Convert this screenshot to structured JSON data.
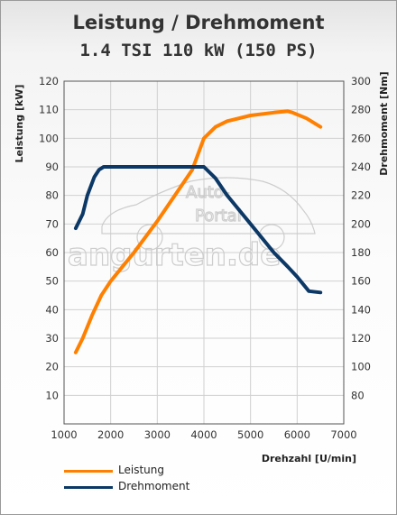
{
  "chart_data": {
    "type": "line",
    "title": "Leistung / Drehmoment",
    "subtitle": "1.4 TSI 110 kW (150 PS)",
    "xlabel": "Drehzahl [U/min]",
    "ylabel_left": "Leistung [kW]",
    "ylabel_right": "Drehmoment [Nm]",
    "xlim": [
      1000,
      7000
    ],
    "ylim_left": [
      0,
      120
    ],
    "ylim_right": [
      60,
      300
    ],
    "x_ticks": [
      "1000",
      "2000",
      "3000",
      "4000",
      "5000",
      "6000",
      "7000"
    ],
    "y_ticks_left": [
      "10",
      "20",
      "30",
      "40",
      "50",
      "60",
      "70",
      "80",
      "90",
      "100",
      "110",
      "120"
    ],
    "y_ticks_right": [
      "80",
      "100",
      "120",
      "140",
      "160",
      "180",
      "200",
      "220",
      "240",
      "260",
      "280",
      "300"
    ],
    "grid": true,
    "legend_position": "bottom-left",
    "watermark": "Auto-Portal angurten.de",
    "series": [
      {
        "name": "Leistung",
        "axis": "left",
        "color": "#ff8000",
        "x": [
          1250,
          1400,
          1600,
          1800,
          2000,
          2500,
          3000,
          3500,
          3750,
          4000,
          4250,
          4500,
          5000,
          5500,
          5800,
          5900,
          6200,
          6500
        ],
        "y": [
          25,
          30,
          38,
          45,
          50,
          60,
          71,
          83,
          89,
          100,
          104,
          106,
          108,
          109,
          109.5,
          109,
          107,
          104
        ]
      },
      {
        "name": "Drehmoment",
        "axis": "right",
        "color": "#0b3866",
        "x": [
          1250,
          1400,
          1500,
          1650,
          1750,
          1850,
          2000,
          2500,
          3000,
          3500,
          4000,
          4250,
          4500,
          5000,
          5500,
          5800,
          6000,
          6250,
          6500
        ],
        "y": [
          197,
          207,
          220,
          233,
          238,
          240,
          240,
          240,
          240,
          240,
          240,
          232,
          220,
          200,
          180,
          170,
          163,
          153,
          152
        ]
      }
    ]
  }
}
